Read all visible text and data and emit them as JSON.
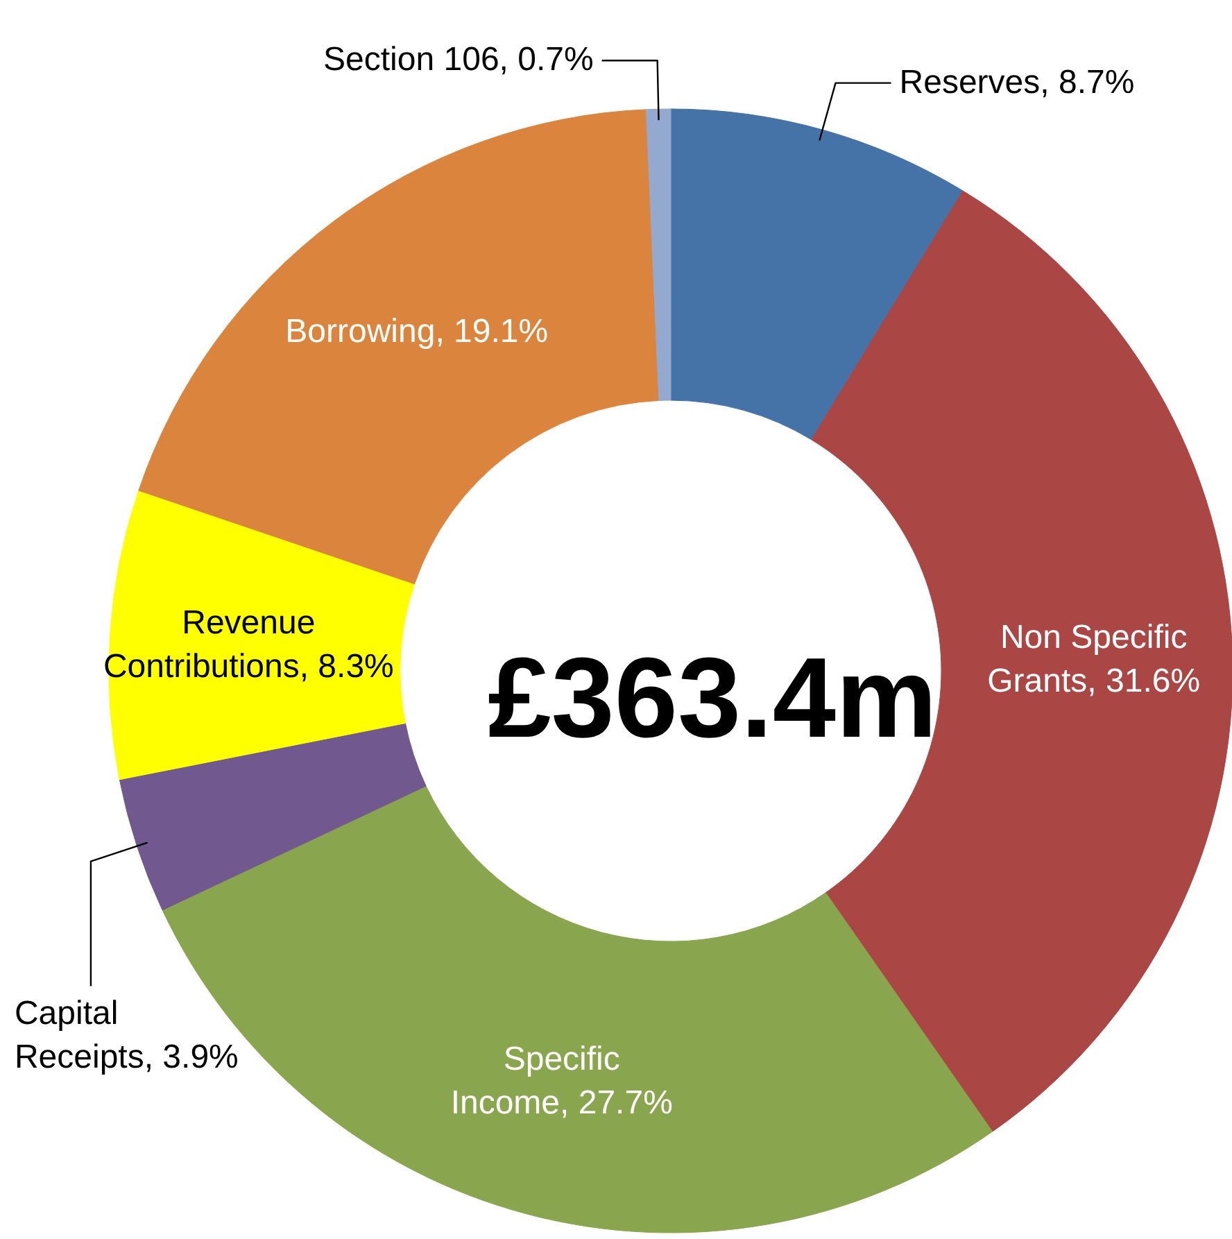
{
  "chart_data": {
    "type": "donut",
    "categories": [
      "Reserves",
      "Non Specific Grants",
      "Specific Income",
      "Capital Receipts",
      "Revenue Contributions",
      "Borrowing",
      "Section 106"
    ],
    "values": [
      8.7,
      31.6,
      27.7,
      3.9,
      8.3,
      19.1,
      0.7
    ],
    "colors": [
      "#4572a7",
      "#aa4643",
      "#89a54e",
      "#71588f",
      "#ffff00",
      "#db843d",
      "#93a9cf"
    ],
    "value_labels": [
      "8.7%",
      "31.6%",
      "27.7%",
      "3.9%",
      "8.3%",
      "19.1%",
      "0.7%"
    ],
    "annotations": [
      "£363.4m"
    ]
  }
}
